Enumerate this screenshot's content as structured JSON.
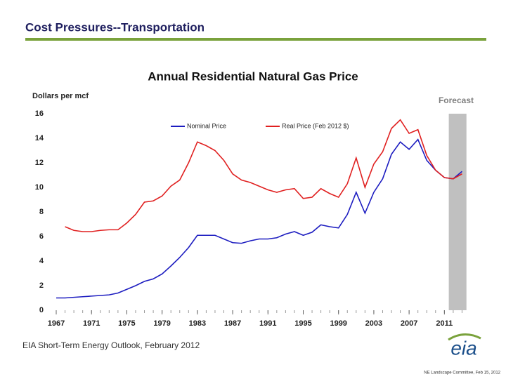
{
  "header": {
    "title": "Cost Pressures--Transportation"
  },
  "chart_data": {
    "type": "line",
    "title": "Annual Residential Natural Gas Price",
    "y_label": "Dollars per mcf",
    "annotation": "Forecast",
    "x": [
      1967,
      1968,
      1969,
      1970,
      1971,
      1972,
      1973,
      1974,
      1975,
      1976,
      1977,
      1978,
      1979,
      1980,
      1981,
      1982,
      1983,
      1984,
      1985,
      1986,
      1987,
      1988,
      1989,
      1990,
      1991,
      1992,
      1993,
      1994,
      1995,
      1996,
      1997,
      1998,
      1999,
      2000,
      2001,
      2002,
      2003,
      2004,
      2005,
      2006,
      2007,
      2008,
      2009,
      2010,
      2011,
      2012,
      2013
    ],
    "series": [
      {
        "name": "Nominal Price",
        "color": "#1c1cc0",
        "values": [
          1.0,
          1.0,
          1.05,
          1.1,
          1.15,
          1.2,
          1.25,
          1.4,
          1.7,
          2.0,
          2.35,
          2.55,
          2.95,
          3.6,
          4.3,
          5.1,
          6.1,
          6.1,
          6.1,
          5.8,
          5.5,
          5.45,
          5.65,
          5.8,
          5.8,
          5.9,
          6.2,
          6.4,
          6.1,
          6.35,
          6.95,
          6.8,
          6.7,
          7.8,
          9.6,
          7.9,
          9.6,
          10.7,
          12.7,
          13.7,
          13.1,
          13.9,
          12.2,
          11.4,
          10.8,
          10.7,
          11.3
        ]
      },
      {
        "name": "Real Price (Feb 2012 $)",
        "color": "#e02020",
        "values": [
          null,
          6.8,
          6.5,
          6.4,
          6.4,
          6.5,
          6.55,
          6.55,
          7.1,
          7.8,
          8.8,
          8.9,
          9.3,
          10.1,
          10.6,
          12.0,
          13.7,
          13.4,
          13.0,
          12.2,
          11.1,
          10.6,
          10.4,
          10.1,
          9.8,
          9.6,
          9.8,
          9.9,
          9.1,
          9.2,
          9.9,
          9.5,
          9.2,
          10.3,
          12.4,
          10.0,
          11.9,
          12.9,
          14.8,
          15.5,
          14.4,
          14.7,
          12.6,
          11.4,
          10.8,
          10.7,
          11.1
        ]
      }
    ],
    "forecast_from": 2012,
    "xlim": [
      1967,
      2014
    ],
    "xticks": [
      1967,
      1971,
      1975,
      1979,
      1983,
      1987,
      1991,
      1995,
      1999,
      2003,
      2007,
      2011
    ],
    "ylim": [
      0,
      16
    ],
    "yticks": [
      0,
      2,
      4,
      6,
      8,
      10,
      12,
      14,
      16
    ],
    "grid": false
  },
  "footer": {
    "source": "EIA Short-Term Energy Outlook, February 2012",
    "logo": "eia",
    "note": "NE Landscape Committee, Feb 15, 2012"
  }
}
